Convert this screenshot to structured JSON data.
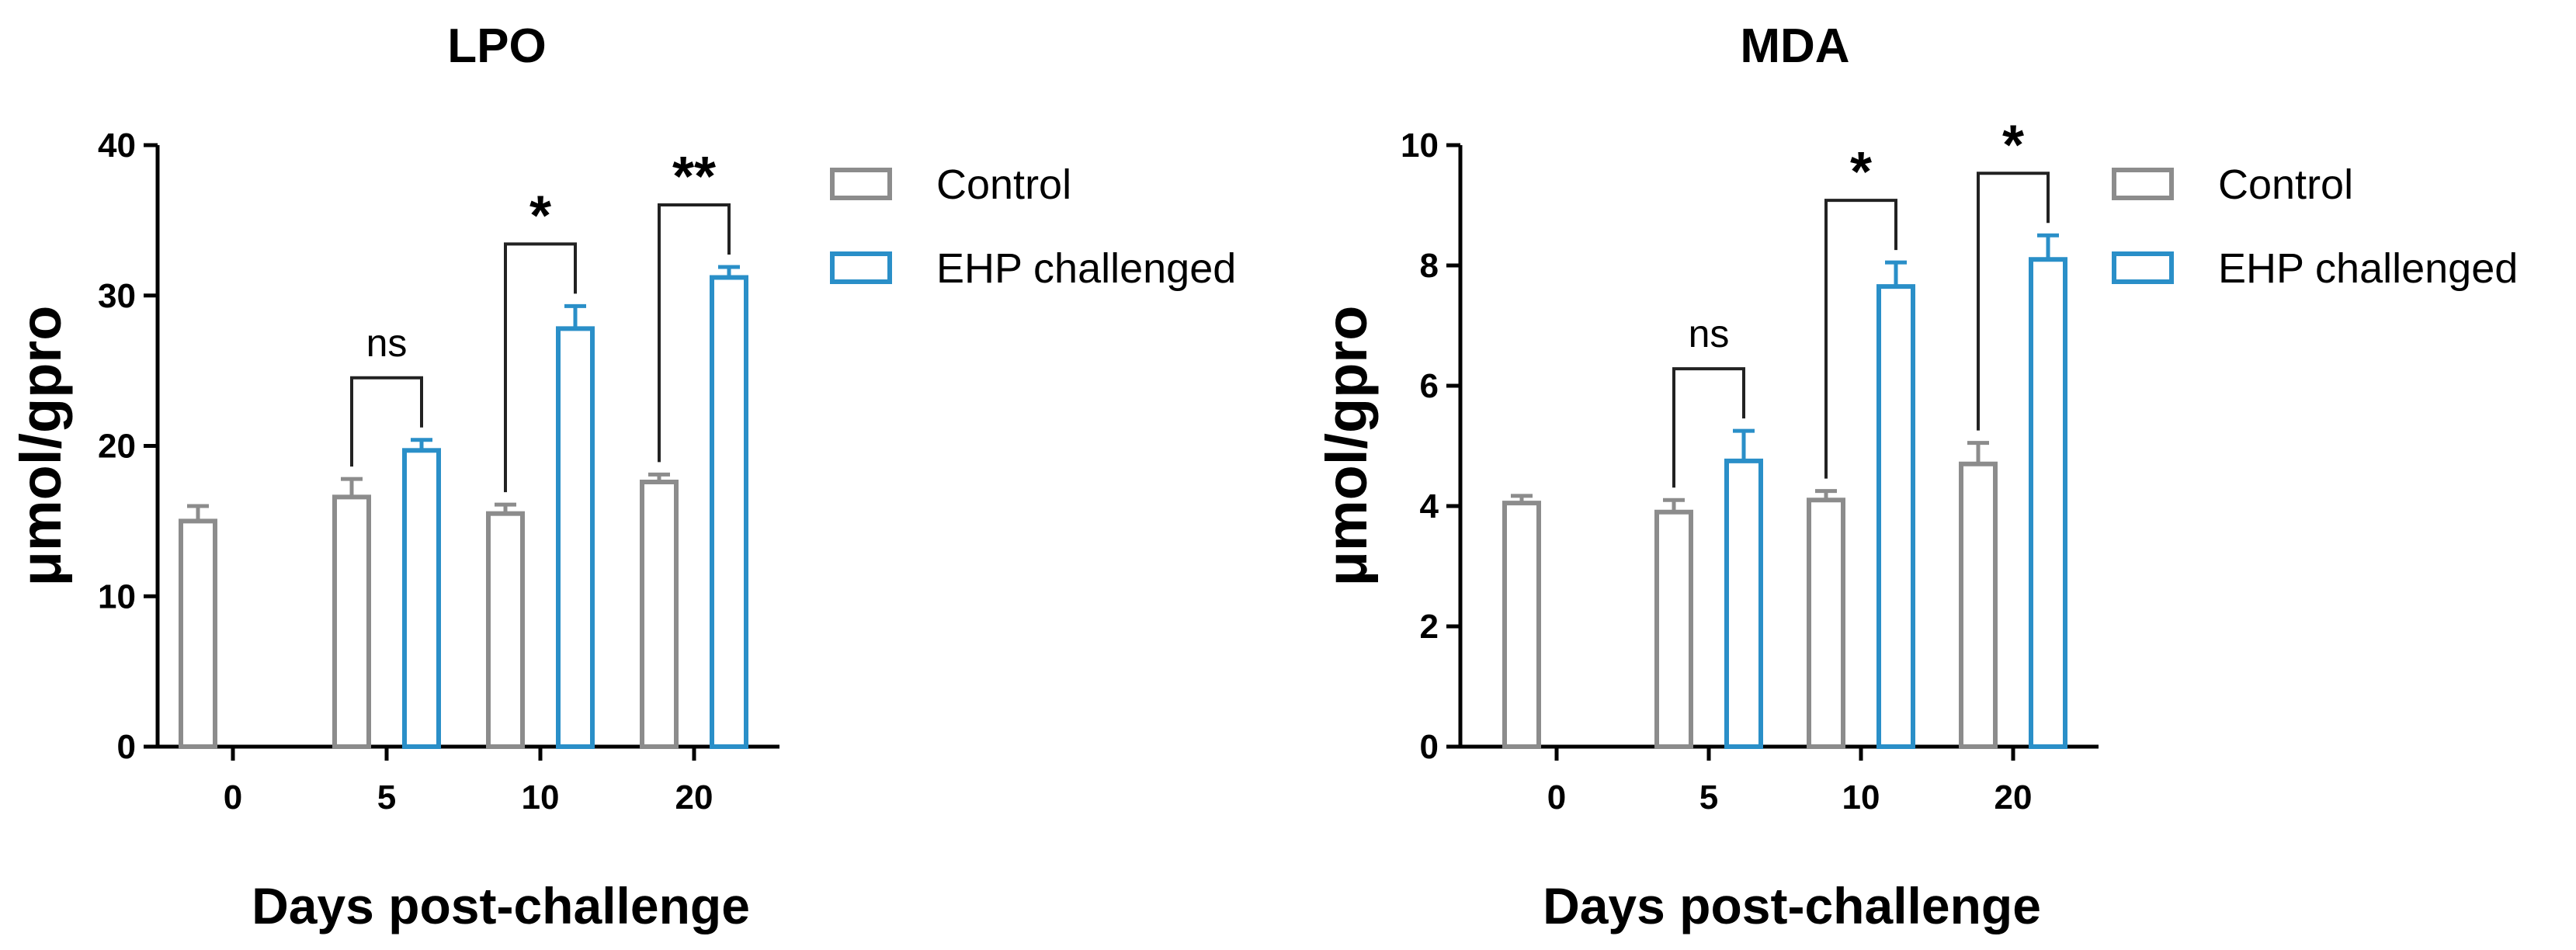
{
  "chart_data": [
    {
      "type": "bar",
      "title": "LPO",
      "xlabel": "Days post-challenge",
      "ylabel": "μmol/gpro",
      "ylim": [
        0,
        40
      ],
      "yticks": [
        0,
        10,
        20,
        30,
        40
      ],
      "categories": [
        "0",
        "5",
        "10",
        "20"
      ],
      "legend_position": "top-right",
      "series": [
        {
          "name": "Control",
          "color": "#8c8c8c",
          "values": [
            15.0,
            16.6,
            15.5,
            17.6
          ],
          "errors": [
            1.0,
            1.2,
            0.6,
            0.5
          ]
        },
        {
          "name": "EHP challenged",
          "color": "#2a8fc8",
          "values": [
            null,
            19.7,
            27.8,
            31.2
          ],
          "errors": [
            null,
            0.7,
            1.5,
            0.7
          ]
        }
      ],
      "annotations": [
        {
          "category": "5",
          "label": "ns"
        },
        {
          "category": "10",
          "label": "*"
        },
        {
          "category": "20",
          "label": "**"
        }
      ]
    },
    {
      "type": "bar",
      "title": "MDA",
      "xlabel": "Days post-challenge",
      "ylabel": "μmol/gpro",
      "ylim": [
        0,
        10
      ],
      "yticks": [
        0,
        2,
        4,
        6,
        8,
        10
      ],
      "categories": [
        "0",
        "5",
        "10",
        "20"
      ],
      "legend_position": "top-right",
      "series": [
        {
          "name": "Control",
          "color": "#8c8c8c",
          "values": [
            4.05,
            3.9,
            4.1,
            4.7
          ],
          "errors": [
            0.12,
            0.2,
            0.15,
            0.35
          ]
        },
        {
          "name": "EHP challenged",
          "color": "#2a8fc8",
          "values": [
            null,
            4.75,
            7.65,
            8.1
          ],
          "errors": [
            null,
            0.5,
            0.4,
            0.4
          ]
        }
      ],
      "annotations": [
        {
          "category": "5",
          "label": "ns"
        },
        {
          "category": "10",
          "label": "*"
        },
        {
          "category": "20",
          "label": "*"
        }
      ]
    }
  ]
}
